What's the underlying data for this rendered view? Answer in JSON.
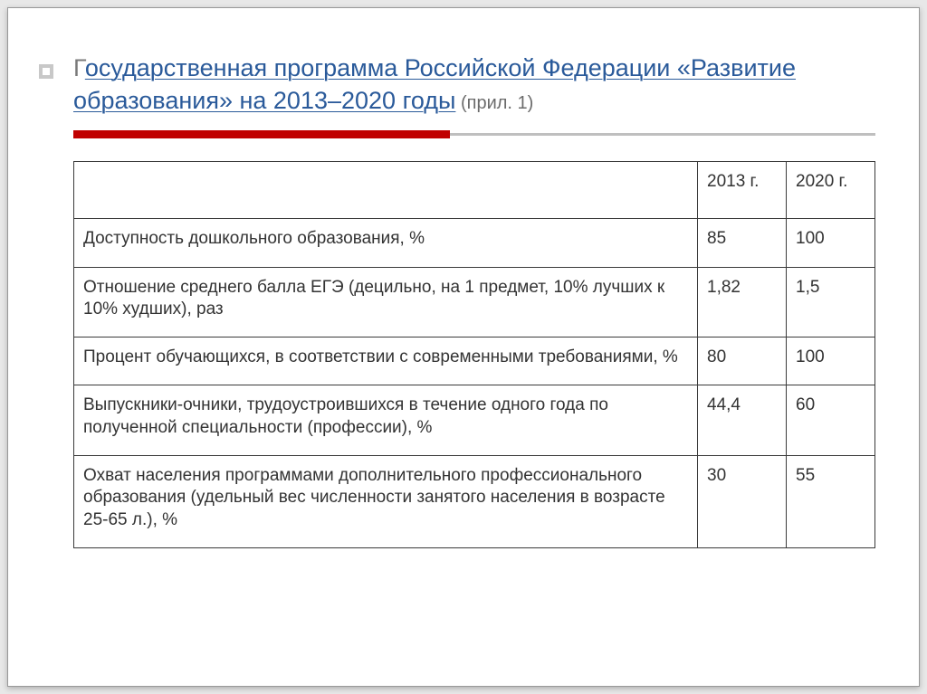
{
  "title": {
    "first_letter": "Г",
    "link_text": "осударственная программа Российской Федерации «Развитие образования» на 2013–2020 годы",
    "suffix": " (прил. 1)"
  },
  "underline": {
    "red_width_pct": 47,
    "red_color": "#c00000",
    "gray_color": "#bfbfbf"
  },
  "table": {
    "columns": [
      "",
      "2013 г.",
      "2020 г."
    ],
    "rows": [
      [
        "Доступность дошкольного образования, %",
        "85",
        "100"
      ],
      [
        "Отношение среднего балла ЕГЭ (децильно, на 1 предмет, 10% лучших к 10% худших), раз",
        "1,82",
        "1,5"
      ],
      [
        "Процент обучающихся, в соответствии с современными требованиями, %",
        "80",
        "100"
      ],
      [
        "Выпускники-очники, трудоустроившихся в течение одного года по полученной специальности (профессии), %",
        "44,4",
        "60"
      ],
      [
        "Охват населения программами дополнительного профессионального образования (удельный вес численности занятого населения в возрасте 25-65 л.), %",
        "30",
        "55"
      ]
    ],
    "border_color": "#3a3a3a",
    "text_color": "#333333",
    "font_size_pt": 14
  },
  "colors": {
    "slide_bg": "#ffffff",
    "page_bg": "#e8e8e8",
    "title_link": "#2a5a9a",
    "title_muted": "#7a7a7a",
    "suffix": "#6b6b6b"
  }
}
